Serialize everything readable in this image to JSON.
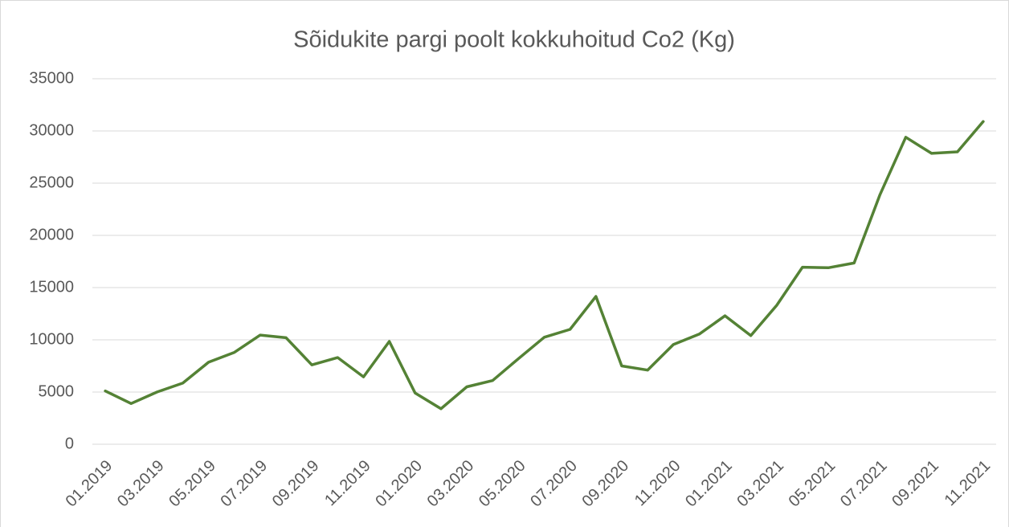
{
  "chart_data": {
    "type": "line",
    "title": "Sõidukite pargi poolt kokkuhoitud Co2  (Kg)",
    "categories": [
      "01.2019",
      null,
      "03.2019",
      null,
      "05.2019",
      null,
      "07.2019",
      null,
      "09.2019",
      null,
      "11.2019",
      null,
      "01.2020",
      null,
      "03.2020",
      null,
      "05.2020",
      null,
      "07.2020",
      null,
      "09.2020",
      null,
      "11.2020",
      null,
      "01.2021",
      null,
      "03.2021",
      null,
      "05.2021",
      null,
      "07.2021",
      null,
      "09.2021",
      null,
      "11.2021"
    ],
    "series": [
      {
        "name": "Co2",
        "color": "#548235",
        "values": [
          5100,
          3900,
          5000,
          5850,
          7850,
          8800,
          10450,
          10200,
          7600,
          8300,
          6450,
          9850,
          4900,
          3400,
          5500,
          6100,
          8200,
          10250,
          11000,
          14150,
          7500,
          7100,
          9550,
          10550,
          12300,
          10400,
          13300,
          16950,
          16900,
          17350,
          23900,
          29400,
          27850,
          28000,
          30900
        ]
      }
    ],
    "ylim": [
      0,
      35000
    ],
    "yticks": [
      0,
      5000,
      10000,
      15000,
      20000,
      25000,
      30000,
      35000
    ],
    "grid": true
  }
}
